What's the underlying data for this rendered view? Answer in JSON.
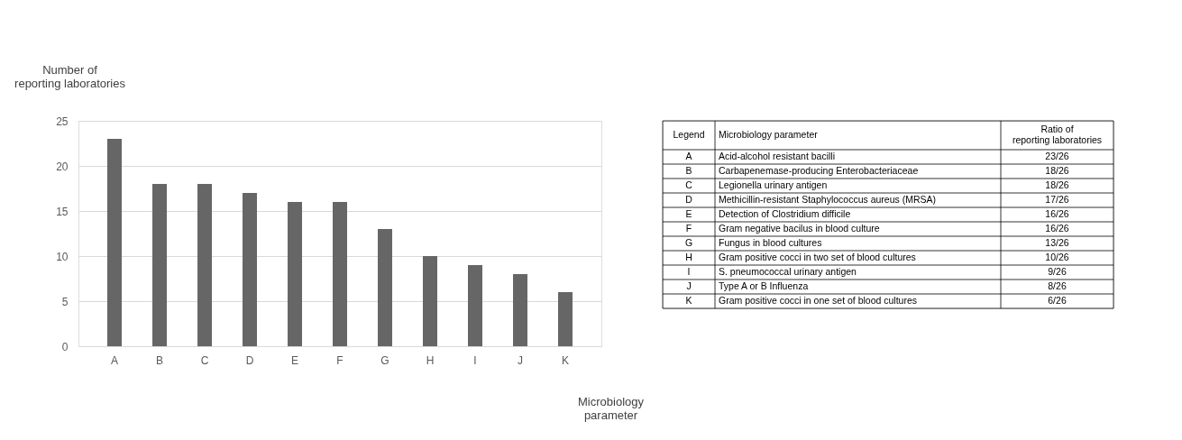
{
  "chart_data": {
    "type": "bar",
    "xlabel": "Microbiology parameter",
    "ylabel": "Number of reporting laboratories",
    "categories": [
      "A",
      "B",
      "C",
      "D",
      "E",
      "F",
      "G",
      "H",
      "I",
      "J",
      "K"
    ],
    "values": [
      23,
      18,
      18,
      17,
      16,
      16,
      13,
      10,
      9,
      8,
      6
    ],
    "color": "#666666",
    "ylim": [
      0,
      25
    ],
    "yticks": [
      0,
      5,
      10,
      15,
      20,
      25
    ],
    "grid": "y",
    "annotations": [
      "Legend",
      "Microbiology parameter",
      "Ratio of reporting laboratories",
      "23/26",
      "18/26",
      "18/26",
      "17/26",
      "16/26",
      "16/26",
      "13/26",
      "10/26",
      "9/26",
      "8/26",
      "6/26",
      "Acid-alcohol resistant bacilli",
      "Carbapenemase-producing Enterobacteriaceae",
      "Legionella urinary antigen",
      "Methicillin-resistant Staphylococcus aureus (MRSA)",
      "Detection of Clostridium difficile",
      "Gram negative bacilus in blood culture",
      "Fungus in blood cultures",
      "Gram positive cocci in two set of  blood cultures",
      "S. pneumococcal urinary antigen",
      "Type A or B Influenza",
      "Gram positive cocci in one set of blood cultures"
    ]
  }
}
